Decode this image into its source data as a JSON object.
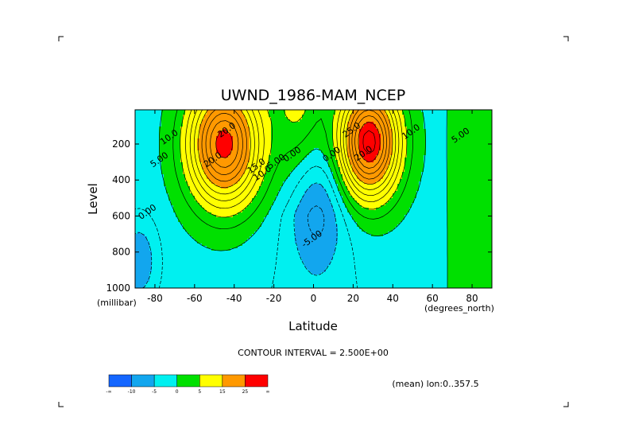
{
  "chart_data": {
    "type": "contour",
    "title": "UWND_1986-MAM_NCEP",
    "xlabel": "Latitude",
    "ylabel": "Level",
    "x_units": "(degrees_north)",
    "y_units": "(millibar)",
    "xlim": [
      -90,
      90
    ],
    "ylim": [
      1000,
      10
    ],
    "y_inverted": true,
    "x_ticks": [
      -80,
      -60,
      -40,
      -20,
      0,
      20,
      40,
      60,
      80
    ],
    "x_tick_labels": [
      "-80",
      "-60",
      "-40",
      "-20",
      "0",
      "20",
      "40",
      "60",
      "80"
    ],
    "y_ticks": [
      200,
      400,
      600,
      800,
      1000
    ],
    "y_tick_labels": [
      "200",
      "400",
      "600",
      "800",
      "1000"
    ],
    "contour_interval_text": "CONTOUR INTERVAL = 2.500E+00",
    "annotation": "(mean) lon:0..357.5",
    "contour_labels": [
      {
        "text": "20.0",
        "lat": -43,
        "lev": 135
      },
      {
        "text": "10.0",
        "lat": -72,
        "lev": 175
      },
      {
        "text": "5.00",
        "lat": -77,
        "lev": 300
      },
      {
        "text": "0.00",
        "lat": -83,
        "lev": 590
      },
      {
        "text": "20.0",
        "lat": -50,
        "lev": 300
      },
      {
        "text": "15.0",
        "lat": -28,
        "lev": 335
      },
      {
        "text": "10.0",
        "lat": -25,
        "lev": 375
      },
      {
        "text": "5.00",
        "lat": -18,
        "lev": 310
      },
      {
        "text": "0.00",
        "lat": -10,
        "lev": 270
      },
      {
        "text": "0.00",
        "lat": 10,
        "lev": 270
      },
      {
        "text": "-5.00",
        "lat": 0,
        "lev": 740
      },
      {
        "text": "25.0",
        "lat": 20,
        "lev": 135
      },
      {
        "text": "10.0",
        "lat": 50,
        "lev": 145
      },
      {
        "text": "5.00",
        "lat": 75,
        "lev": 165
      },
      {
        "text": "20.0",
        "lat": 26,
        "lev": 265
      }
    ],
    "colorbar": {
      "colors": [
        "#1466ff",
        "#12a6ee",
        "#00f0f0",
        "#00e000",
        "#ffff00",
        "#ff9900",
        "#ff0000"
      ],
      "labels": [
        "-∞",
        "-10",
        "-5",
        "0",
        "5",
        "15",
        "25",
        "∞"
      ]
    },
    "jets": [
      {
        "lat": -45,
        "lev": 200,
        "max": 27.5
      },
      {
        "lat": 28,
        "lev": 190,
        "max": 30
      }
    ]
  }
}
